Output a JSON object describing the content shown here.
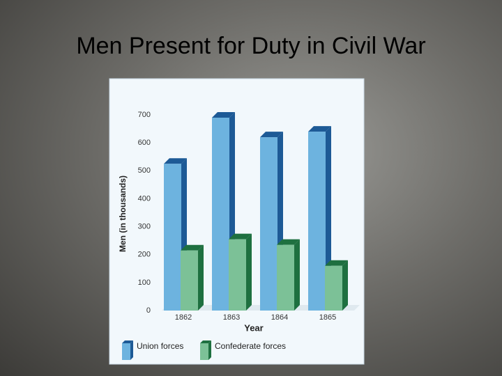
{
  "chart_data": {
    "type": "bar3d",
    "title": "Men Present for Duty in Civil War",
    "x_label": "Year",
    "y_label": "Men (in thousands)",
    "categories": [
      "1862",
      "1863",
      "1864",
      "1865"
    ],
    "series": [
      {
        "name": "Union forces",
        "color": "#6db3df",
        "values": [
          525,
          690,
          620,
          640
        ]
      },
      {
        "name": "Confederate forces",
        "color": "#7cc197",
        "values": [
          215,
          255,
          235,
          160
        ]
      }
    ],
    "ylim": [
      0,
      700
    ],
    "yticks": [
      0,
      100,
      200,
      300,
      400,
      500,
      600,
      700
    ]
  }
}
